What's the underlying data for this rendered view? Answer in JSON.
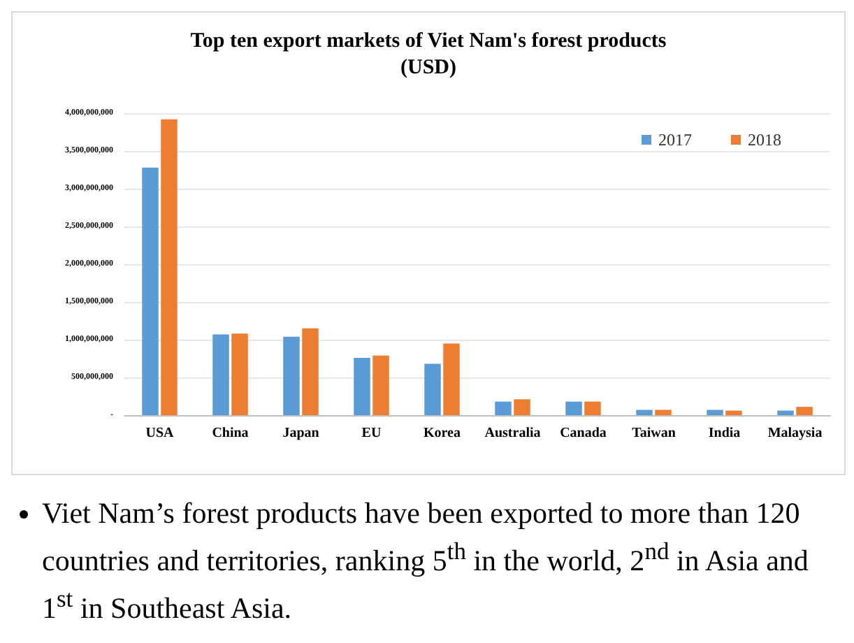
{
  "chart_data": {
    "type": "bar",
    "title": "Top ten export markets of Viet Nam's forest products\n(USD)",
    "categories": [
      "USA",
      "China",
      "Japan",
      "EU",
      "Korea",
      "Australia",
      "Canada",
      "Taiwan",
      "India",
      "Malaysia"
    ],
    "series": [
      {
        "name": "2017",
        "color": "#5b9bd5",
        "values": [
          3280000000,
          1070000000,
          1040000000,
          760000000,
          680000000,
          180000000,
          180000000,
          70000000,
          70000000,
          60000000
        ]
      },
      {
        "name": "2018",
        "color": "#ed7d31",
        "values": [
          3920000000,
          1080000000,
          1150000000,
          790000000,
          950000000,
          210000000,
          180000000,
          70000000,
          60000000,
          110000000
        ]
      }
    ],
    "ylim": [
      0,
      4000000000
    ],
    "yticks": [
      {
        "value": 0,
        "label": "-"
      },
      {
        "value": 500000000,
        "label": "500,000,000"
      },
      {
        "value": 1000000000,
        "label": "1,000,000,000"
      },
      {
        "value": 1500000000,
        "label": "1,500,000,000"
      },
      {
        "value": 2000000000,
        "label": "2,000,000,000"
      },
      {
        "value": 2500000000,
        "label": "2,500,000,000"
      },
      {
        "value": 3000000000,
        "label": "3,000,000,000"
      },
      {
        "value": 3500000000,
        "label": "3,500,000,000"
      },
      {
        "value": 4000000000,
        "label": "4,000,000,000"
      }
    ],
    "grid": "y",
    "legend": "top right",
    "annotations": [
      "Viet Nam’s forest products have been exported to more than 120 countries and territories, ranking 5$^{th}$ in the world, 2$^{nd}$ in Asia and 1$^{st}$ in Southeast Asia."
    ]
  }
}
